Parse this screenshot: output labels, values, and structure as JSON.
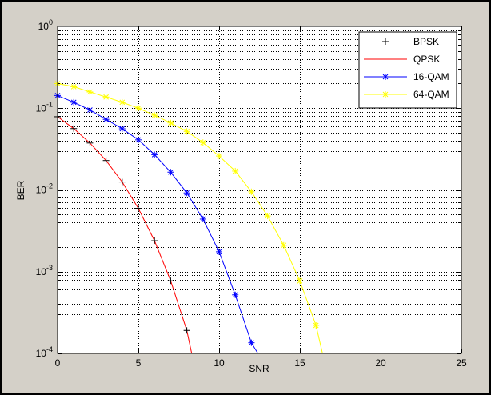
{
  "chart_data": {
    "type": "line",
    "xlabel": "SNR",
    "ylabel": "BER",
    "xlim": [
      0,
      25
    ],
    "ylim": [
      0.0001,
      1
    ],
    "yscale": "log",
    "grid": true,
    "grid_style": "dotted, with log minor lines",
    "legend_position": "top-right",
    "xticks": [
      "0",
      "5",
      "10",
      "15",
      "20",
      "25"
    ],
    "yticks": [
      {
        "base": "10",
        "exp": "0",
        "value": 1
      },
      {
        "base": "10",
        "exp": "-1",
        "value": 0.1
      },
      {
        "base": "10",
        "exp": "-2",
        "value": 0.01
      },
      {
        "base": "10",
        "exp": "-3",
        "value": 0.001
      },
      {
        "base": "10",
        "exp": "-4",
        "value": 0.0001
      }
    ],
    "series": [
      {
        "name": "BPSK",
        "color": "#000000",
        "line": false,
        "marker": "+",
        "x": [
          0,
          1,
          2,
          3,
          4,
          5,
          6,
          7,
          8
        ],
        "y": [
          0.0786,
          0.0563,
          0.0375,
          0.0229,
          0.0125,
          0.00595,
          0.00239,
          0.000773,
          0.000191
        ]
      },
      {
        "name": "QPSK",
        "color": "#ff0000",
        "line": true,
        "marker": "none",
        "x": [
          0,
          1,
          2,
          3,
          4,
          5,
          6,
          7,
          8,
          8.3
        ],
        "y": [
          0.0786,
          0.0563,
          0.0375,
          0.0229,
          0.0125,
          0.00595,
          0.00239,
          0.000773,
          0.000191,
          0.0001
        ]
      },
      {
        "name": "16-QAM",
        "color": "#0000ff",
        "line": true,
        "marker": "*",
        "x": [
          0,
          1,
          2,
          3,
          4,
          5,
          6,
          7,
          8,
          9,
          10,
          11,
          12,
          12.4
        ],
        "y": [
          0.143,
          0.118,
          0.095,
          0.073,
          0.056,
          0.041,
          0.027,
          0.0165,
          0.0092,
          0.0044,
          0.00175,
          0.00052,
          0.000135,
          0.0001
        ]
      },
      {
        "name": "64-QAM",
        "color": "#ffff00",
        "line": true,
        "marker": "*",
        "x": [
          0,
          1,
          2,
          3,
          4,
          5,
          6,
          7,
          8,
          9,
          10,
          11,
          12,
          13,
          14,
          15,
          16,
          16.4
        ],
        "y": [
          0.2,
          0.183,
          0.158,
          0.137,
          0.118,
          0.1,
          0.082,
          0.066,
          0.052,
          0.038,
          0.026,
          0.017,
          0.0095,
          0.0048,
          0.0021,
          0.00077,
          0.00022,
          0.0001
        ]
      }
    ]
  }
}
